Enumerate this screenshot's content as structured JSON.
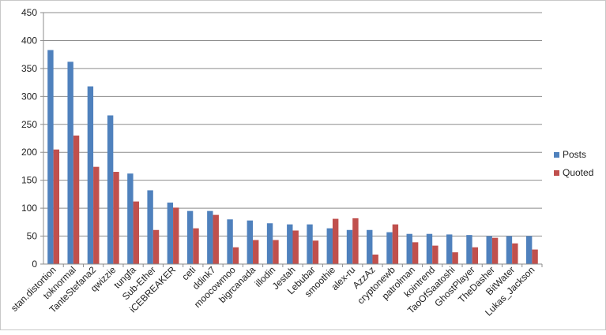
{
  "chart_data": {
    "type": "bar",
    "categories": [
      "stan.distortion",
      "toknormal",
      "TanteStefana2",
      "qwizzie",
      "tungfa",
      "Sub-Ether",
      "iCEBREAKER",
      "ceti",
      "ddink7",
      "moocowmoo",
      "bigrcanada",
      "illodin",
      "Jestah",
      "Lebubar",
      "smoothie",
      "alex-ru",
      "AzzAz",
      "cryptonewb",
      "patrolman",
      "kointrend",
      "TaoOfSaatoshi",
      "GhostPlayer",
      "TheDasher",
      "BitWater",
      "Lukas_Jackson"
    ],
    "series": [
      {
        "name": "Posts",
        "color": "#4f81bd",
        "values": [
          383,
          362,
          318,
          266,
          162,
          132,
          110,
          95,
          95,
          80,
          78,
          73,
          71,
          71,
          64,
          61,
          61,
          57,
          54,
          54,
          53,
          52,
          50,
          50,
          50
        ]
      },
      {
        "name": "Quoted",
        "color": "#c0504d",
        "values": [
          205,
          230,
          174,
          165,
          112,
          61,
          101,
          64,
          88,
          30,
          43,
          43,
          60,
          42,
          81,
          82,
          17,
          71,
          39,
          33,
          21,
          30,
          47,
          37,
          26
        ]
      }
    ],
    "yticks": [
      "0",
      "50",
      "100",
      "150",
      "200",
      "250",
      "300",
      "350",
      "400",
      "450"
    ],
    "ylim": [
      0,
      450
    ],
    "grid": true,
    "legend_position": "right"
  }
}
